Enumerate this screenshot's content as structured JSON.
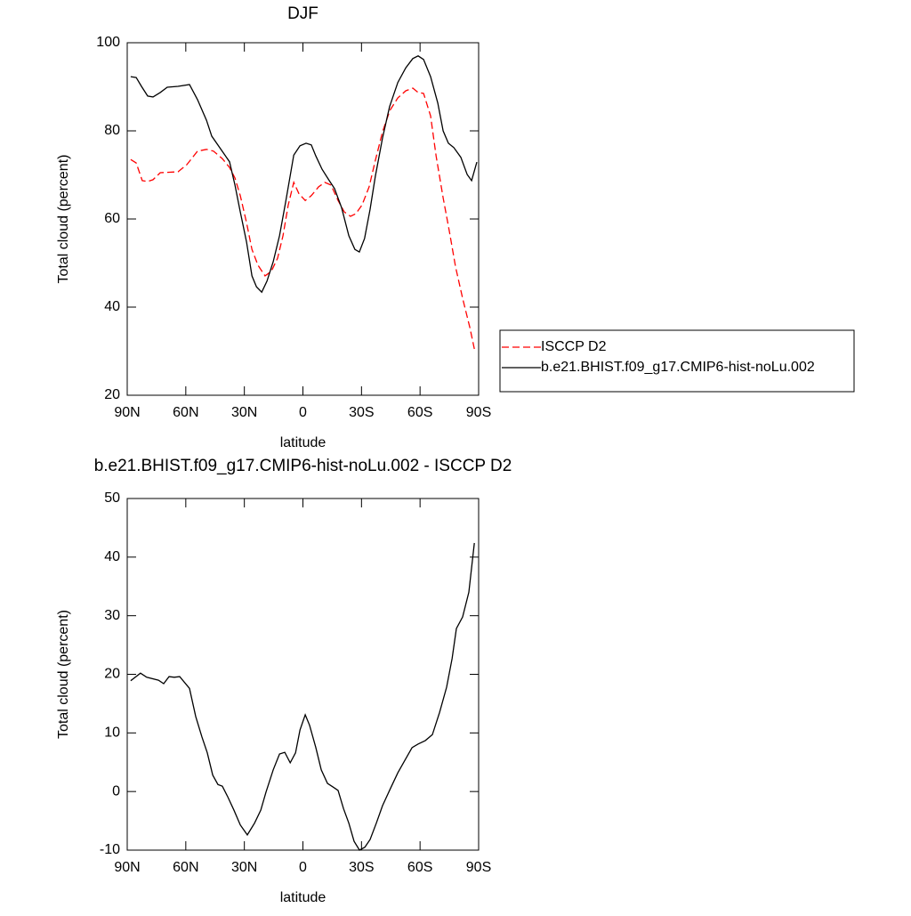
{
  "chart_data": [
    {
      "type": "line",
      "title": "DJF",
      "xlabel": "latitude",
      "ylabel": "Total cloud (percent)",
      "xlim": [
        90,
        -90
      ],
      "ylim": [
        20,
        100
      ],
      "xticks": [
        {
          "value": 90,
          "label": "90N"
        },
        {
          "value": 60,
          "label": "60N"
        },
        {
          "value": 30,
          "label": "30N"
        },
        0,
        {
          "value": -30,
          "label": "30S"
        },
        {
          "value": -60,
          "label": "60S"
        },
        {
          "value": -90,
          "label": "90S"
        }
      ],
      "yticks": [
        20,
        40,
        60,
        80,
        100
      ],
      "series": [
        {
          "name": "ISCCP D2",
          "color": "#ff0000",
          "dashed": true,
          "x": [
            88.2,
            85.4,
            82.3,
            79.5,
            76.8,
            73.1,
            64.0,
            59.5,
            54.0,
            49.4,
            45.8,
            41.3,
            37.6,
            34.8,
            32.1,
            28.9,
            26.1,
            23.0,
            19.4,
            16.2,
            13.0,
            10.2,
            7.5,
            4.7,
            2.0,
            -1.2,
            -4.3,
            -8.0,
            -11.2,
            -14.4,
            -18.0,
            -21.2,
            -24.4,
            -27.1,
            -30.3,
            -33.9,
            -37.1,
            -40.8,
            -44.5,
            -48.6,
            -52.7,
            -56.3,
            -59.0,
            -61.8,
            -65.4,
            -68.2,
            -71.8,
            -75.0,
            -78.2,
            -81.8,
            -85.5,
            -87.8
          ],
          "values": [
            73.5,
            72.7,
            68.7,
            68.5,
            68.9,
            70.5,
            70.7,
            72.3,
            75.4,
            75.8,
            75.4,
            73.7,
            71.7,
            69.3,
            65.3,
            59.2,
            53.1,
            49.5,
            47.1,
            48.1,
            51.1,
            56.2,
            63.2,
            68.3,
            65.7,
            64.2,
            65.3,
            67.3,
            68.3,
            67.7,
            64.2,
            61.6,
            60.6,
            61.2,
            63.2,
            67.3,
            73.3,
            79.8,
            84.6,
            87.5,
            89.1,
            89.7,
            88.7,
            88.5,
            83.4,
            74.3,
            64.8,
            57.2,
            49.1,
            42.0,
            35.4,
            30.5
          ]
        },
        {
          "name": "b.e21.BHIST.f09_g17.CMIP6-hist-noLu.002",
          "color": "#000000",
          "dashed": false,
          "x": [
            88.2,
            85.4,
            82.7,
            79.5,
            76.8,
            73.1,
            69.5,
            64.0,
            58.1,
            54.0,
            49.4,
            46.7,
            41.7,
            37.6,
            34.8,
            32.1,
            28.9,
            26.1,
            23.8,
            21.1,
            18.4,
            15.2,
            12.0,
            8.8,
            4.7,
            1.5,
            -1.6,
            -4.3,
            -6.6,
            -9.8,
            -13.5,
            -16.2,
            -19.8,
            -23.5,
            -26.6,
            -28.9,
            -31.6,
            -34.4,
            -37.1,
            -40.8,
            -44.4,
            -48.6,
            -52.7,
            -56.3,
            -59.0,
            -61.8,
            -65.4,
            -69.1,
            -71.8,
            -74.5,
            -77.3,
            -80.9,
            -84.1,
            -86.4,
            -89.1
          ],
          "values": [
            92.3,
            92.1,
            90.1,
            87.9,
            87.7,
            88.7,
            89.9,
            90.1,
            90.5,
            87.1,
            82.4,
            78.8,
            75.6,
            73.0,
            67.7,
            61.6,
            54.8,
            47.1,
            44.6,
            43.4,
            45.9,
            50.3,
            56.2,
            64.0,
            74.5,
            76.6,
            77.2,
            76.8,
            74.3,
            71.3,
            68.7,
            66.9,
            62.6,
            56.2,
            53.1,
            52.5,
            55.6,
            62.2,
            69.7,
            78.4,
            85.5,
            91.0,
            94.3,
            96.4,
            97.0,
            96.2,
            92.3,
            86.3,
            80.0,
            77.2,
            76.2,
            74.0,
            70.1,
            68.7,
            72.9
          ]
        }
      ]
    },
    {
      "type": "line",
      "title": "b.e21.BHIST.f09_g17.CMIP6-hist-noLu.002 - ISCCP D2",
      "xlabel": "latitude",
      "ylabel": "Total cloud (percent)",
      "xlim": [
        90,
        -90
      ],
      "ylim": [
        -10,
        50
      ],
      "xticks": [
        {
          "value": 90,
          "label": "90N"
        },
        {
          "value": 60,
          "label": "60N"
        },
        {
          "value": 30,
          "label": "30N"
        },
        0,
        {
          "value": -30,
          "label": "30S"
        },
        {
          "value": -60,
          "label": "60S"
        },
        {
          "value": -90,
          "label": "90S"
        }
      ],
      "yticks": [
        -10,
        0,
        10,
        20,
        30,
        40,
        50
      ],
      "color": "#000000",
      "x": [
        88.2,
        83.2,
        80.0,
        74.0,
        71.3,
        68.6,
        65.9,
        63.1,
        58.1,
        54.9,
        51.7,
        49.0,
        46.2,
        43.5,
        41.3,
        38.5,
        35.3,
        32.1,
        28.5,
        24.8,
        21.6,
        18.9,
        15.2,
        12.0,
        9.3,
        6.5,
        3.8,
        1.5,
        -1.2,
        -3.4,
        -6.6,
        -9.4,
        -12.6,
        -15.3,
        -18.0,
        -20.8,
        -23.5,
        -26.2,
        -29.0,
        -31.7,
        -34.4,
        -37.6,
        -40.8,
        -44.5,
        -48.6,
        -52.7,
        -55.9,
        -59.0,
        -62.7,
        -66.3,
        -70.0,
        -73.6,
        -76.4,
        -78.6,
        -81.8,
        -85.0,
        -87.8
      ],
      "values": [
        18.9,
        20.2,
        19.5,
        19.0,
        18.4,
        19.6,
        19.5,
        19.6,
        17.6,
        12.8,
        9.3,
        6.6,
        2.8,
        1.2,
        0.9,
        -0.9,
        -3.2,
        -5.7,
        -7.4,
        -5.4,
        -3.2,
        -0.1,
        3.7,
        6.4,
        6.7,
        4.9,
        6.6,
        10.5,
        13.1,
        11.3,
        7.5,
        3.7,
        1.4,
        0.8,
        0.2,
        -2.9,
        -5.4,
        -8.5,
        -10.0,
        -9.5,
        -8.2,
        -5.4,
        -2.4,
        0.3,
        3.2,
        5.6,
        7.5,
        8.1,
        8.7,
        9.7,
        13.5,
        17.8,
        22.7,
        27.8,
        29.8,
        34.0,
        42.4
      ]
    }
  ]
}
